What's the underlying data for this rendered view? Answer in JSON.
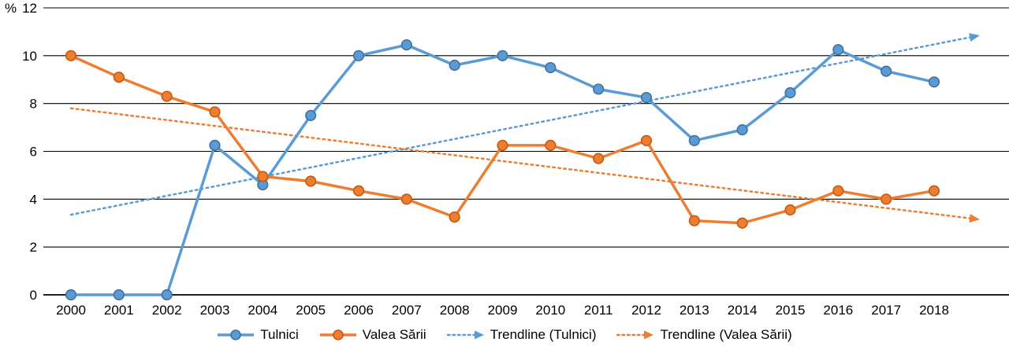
{
  "chart_data": {
    "type": "line",
    "title": "",
    "xlabel": "",
    "ylabel": "%",
    "ylim": [
      0,
      12
    ],
    "yticks": [
      0,
      2,
      4,
      6,
      8,
      10,
      12
    ],
    "grid": true,
    "legend_position": "bottom",
    "categories": [
      "2000",
      "2001",
      "2002",
      "2003",
      "2004",
      "2005",
      "2006",
      "2007",
      "2008",
      "2009",
      "2010",
      "2011",
      "2012",
      "2013",
      "2014",
      "2015",
      "2016",
      "2017",
      "2018"
    ],
    "series": [
      {
        "name": "Tulnici",
        "color": "#5B9BD5",
        "border": "#41719C",
        "line": "solid",
        "marker": "circle",
        "values": [
          0,
          0,
          0,
          6.25,
          4.6,
          7.5,
          10,
          10.45,
          9.6,
          10,
          9.5,
          8.6,
          8.25,
          6.45,
          6.9,
          8.45,
          10.25,
          9.35,
          8.9
        ]
      },
      {
        "name": "Valea Sării",
        "color": "#ED7D31",
        "border": "#C55A11",
        "line": "solid",
        "marker": "circle",
        "values": [
          10,
          9.1,
          8.3,
          7.65,
          4.95,
          4.75,
          4.35,
          4,
          3.25,
          6.25,
          6.25,
          5.7,
          6.45,
          3.1,
          3,
          3.55,
          4.35,
          4,
          4.35
        ]
      },
      {
        "name": "Trendline (Tulnici)",
        "color": "#5B9BD5",
        "line": "dotted",
        "marker": "arrow",
        "trend_start": 3.35,
        "trend_end": 10.85
      },
      {
        "name": "Trendline (Valea Sării)",
        "color": "#ED7D31",
        "line": "dotted",
        "marker": "arrow",
        "trend_start": 7.8,
        "trend_end": 3.15
      }
    ],
    "axis_color": "#000000",
    "grid_color": "#000000"
  }
}
